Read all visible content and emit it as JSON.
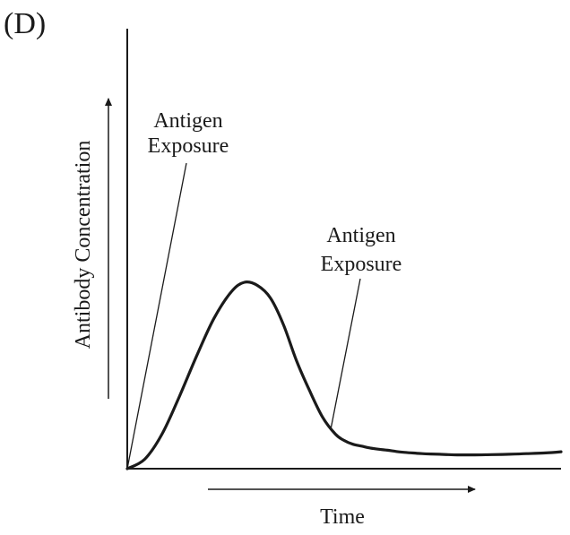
{
  "panel_label": "(D)",
  "chart_data": {
    "type": "line",
    "title": "",
    "xlabel": "Time",
    "ylabel": "Antibody Concentration",
    "xlim": [
      0,
      100
    ],
    "ylim": [
      0,
      100
    ],
    "grid": false,
    "legend": "none",
    "series": [
      {
        "x": [
          0,
          4,
          8,
          12,
          16,
          20,
          24,
          27,
          30,
          33,
          36,
          39,
          42,
          45,
          48,
          50,
          52,
          54,
          56,
          58,
          60,
          62,
          64,
          66,
          68,
          70,
          72,
          74,
          76,
          78,
          80,
          84,
          88,
          92,
          96,
          100
        ],
        "values": [
          0,
          3,
          11,
          23,
          36,
          48,
          56.5,
          59.5,
          58.5,
          54.5,
          46,
          34.5,
          25,
          16.5,
          11,
          9,
          7.8,
          7.2,
          6.6,
          6.2,
          5.9,
          5.5,
          5.2,
          5.0,
          4.8,
          4.7,
          4.6,
          4.5,
          4.4,
          4.4,
          4.4,
          4.5,
          4.6,
          4.8,
          5.0,
          5.4
        ]
      }
    ],
    "annotations": [
      {
        "text_lines": [
          "Antigen",
          "Exposure"
        ],
        "target_x": 0,
        "target_y": 0
      },
      {
        "text_lines": [
          "Antigen",
          "Exposure"
        ],
        "target_x": 47,
        "target_y": 13.2
      }
    ]
  }
}
